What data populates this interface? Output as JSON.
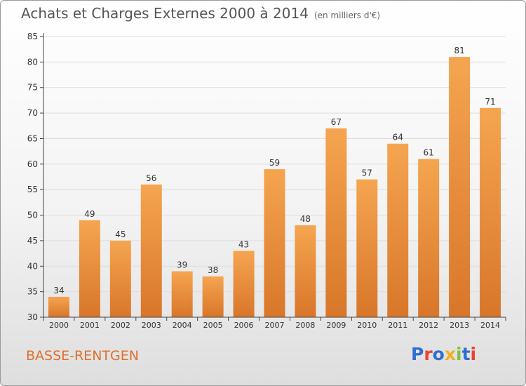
{
  "title": "Achats et Charges Externes 2000 à 2014",
  "subtitle": "(en milliers d'€)",
  "footer_label": "BASSE-RENTGEN",
  "logo": {
    "text": "Proxiti",
    "colors": [
      "#2f6fd1",
      "#e8452f",
      "#2f6fd1",
      "#f0b020",
      "#7cc24b",
      "#2f6fd1",
      "#e8452f"
    ]
  },
  "colors": {
    "bar_light": "#f5a550",
    "bar_dark": "#d8762a",
    "axis": "#444444",
    "grid": "#dddddd",
    "label": "#333333"
  },
  "chart_data": {
    "type": "bar",
    "categories": [
      "2000",
      "2001",
      "2002",
      "2003",
      "2004",
      "2005",
      "2006",
      "2007",
      "2008",
      "2009",
      "2010",
      "2011",
      "2012",
      "2013",
      "2014"
    ],
    "values": [
      34,
      49,
      45,
      56,
      39,
      38,
      43,
      59,
      48,
      67,
      57,
      64,
      61,
      81,
      71
    ],
    "ylim": [
      30,
      85
    ],
    "yticks": [
      30,
      35,
      40,
      45,
      50,
      55,
      60,
      65,
      70,
      75,
      80,
      85
    ],
    "grid": true,
    "data_labels": true
  }
}
